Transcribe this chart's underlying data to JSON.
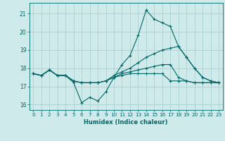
{
  "title": "",
  "xlabel": "Humidex (Indice chaleur)",
  "background_color": "#ceeaea",
  "grid_color": "#aed0d0",
  "line_color": "#006868",
  "xlim": [
    -0.5,
    23.5
  ],
  "ylim": [
    15.7,
    21.6
  ],
  "yticks": [
    16,
    17,
    18,
    19,
    20,
    21
  ],
  "xticks": [
    0,
    1,
    2,
    3,
    4,
    5,
    6,
    7,
    8,
    9,
    10,
    11,
    12,
    13,
    14,
    15,
    16,
    17,
    18,
    19,
    20,
    21,
    22,
    23
  ],
  "series1_x": [
    0,
    1,
    2,
    3,
    4,
    5,
    6,
    7,
    8,
    9,
    10,
    11,
    12,
    13,
    14,
    15,
    16,
    17,
    18,
    19,
    20,
    21,
    22,
    23
  ],
  "series1_y": [
    17.7,
    17.6,
    17.9,
    17.6,
    17.6,
    17.2,
    16.1,
    16.4,
    16.2,
    16.7,
    17.5,
    18.2,
    18.7,
    19.8,
    21.2,
    20.7,
    20.5,
    20.3,
    19.2,
    18.6,
    18.0,
    17.5,
    17.3,
    17.2
  ],
  "series2_x": [
    0,
    1,
    2,
    3,
    4,
    5,
    6,
    7,
    8,
    9,
    10,
    11,
    12,
    13,
    14,
    15,
    16,
    17,
    18,
    19,
    20,
    21,
    22,
    23
  ],
  "series2_y": [
    17.7,
    17.6,
    17.9,
    17.6,
    17.6,
    17.3,
    17.2,
    17.2,
    17.2,
    17.3,
    17.6,
    17.8,
    18.0,
    18.3,
    18.6,
    18.8,
    19.0,
    19.1,
    19.2,
    18.6,
    18.0,
    17.5,
    17.3,
    17.2
  ],
  "series3_x": [
    0,
    1,
    2,
    3,
    4,
    5,
    6,
    7,
    8,
    9,
    10,
    11,
    12,
    13,
    14,
    15,
    16,
    17,
    18,
    19,
    20,
    21,
    22,
    23
  ],
  "series3_y": [
    17.7,
    17.6,
    17.9,
    17.6,
    17.6,
    17.3,
    17.2,
    17.2,
    17.2,
    17.3,
    17.5,
    17.7,
    17.8,
    17.9,
    18.0,
    18.1,
    18.2,
    18.2,
    17.5,
    17.3,
    17.2,
    17.2,
    17.2,
    17.2
  ],
  "series4_x": [
    0,
    1,
    2,
    3,
    4,
    5,
    6,
    7,
    8,
    9,
    10,
    11,
    12,
    13,
    14,
    15,
    16,
    17,
    18,
    19,
    20,
    21,
    22,
    23
  ],
  "series4_y": [
    17.7,
    17.6,
    17.9,
    17.6,
    17.6,
    17.3,
    17.2,
    17.2,
    17.2,
    17.3,
    17.5,
    17.6,
    17.7,
    17.7,
    17.7,
    17.7,
    17.7,
    17.3,
    17.3,
    17.3,
    17.2,
    17.2,
    17.2,
    17.2
  ]
}
